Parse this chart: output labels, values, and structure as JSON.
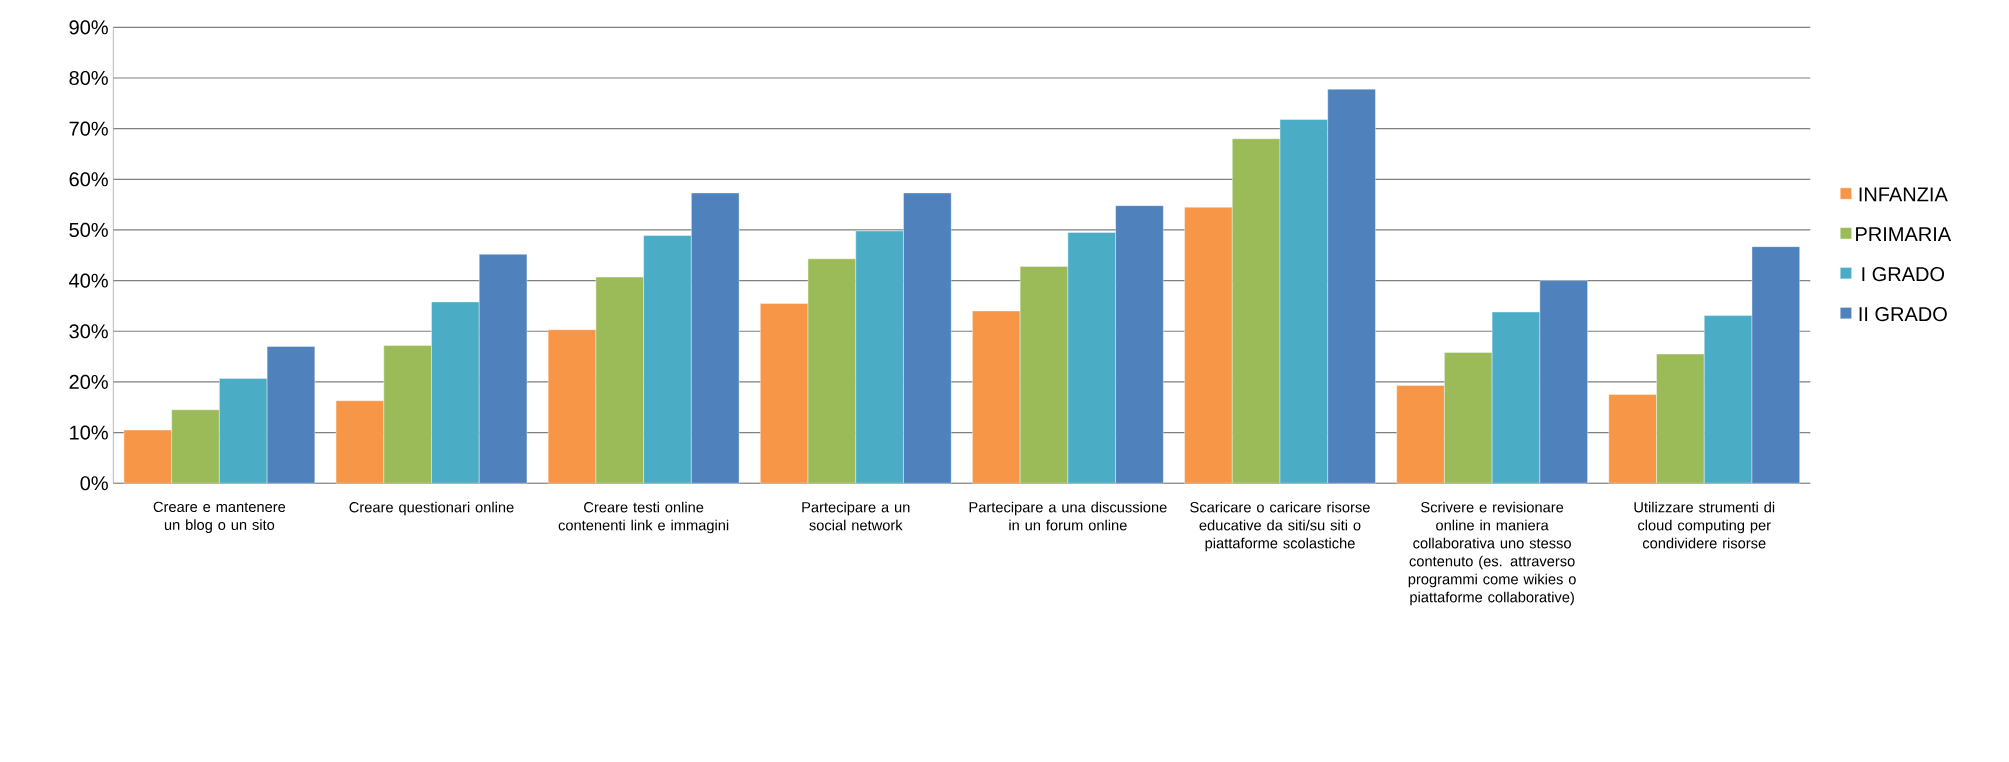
{
  "chart_data": {
    "type": "bar",
    "categories": [
      "Creare e mantenere un blog o un sito",
      "Creare questionari online",
      "Creare testi online contenenti link e immagini",
      "Partecipare a un social network",
      "Partecipare a una discussione in un forum online",
      "Scaricare o caricare risorse educative da siti/su siti o piattaforme scolastiche",
      "Scrivere e revisionare online in maniera collaborativa uno stesso contenuto (es. attraverso programmi come wikies o piattaforme collaborative)",
      "Utilizzare strumenti di cloud computing per condividere risorse"
    ],
    "series": [
      {
        "name": "INFANZIA",
        "color": "#f79646",
        "values": [
          10.5,
          16.3,
          30.3,
          35.5,
          34,
          54.5,
          19.3,
          17.5
        ]
      },
      {
        "name": "PRIMARIA",
        "color": "#9bbb59",
        "values": [
          14.5,
          27.2,
          40.7,
          44.3,
          42.8,
          68,
          25.8,
          25.5
        ]
      },
      {
        "name": "I GRADO",
        "color": "#4bacc6",
        "values": [
          20.7,
          35.8,
          48.9,
          49.8,
          49.5,
          71.8,
          33.8,
          33.1
        ]
      },
      {
        "name": "II GRADO",
        "color": "#4f81bd",
        "values": [
          27,
          45.2,
          57.3,
          57.3,
          54.8,
          77.8,
          40,
          46.7
        ]
      }
    ],
    "ylim": [
      0,
      90
    ],
    "yticks": [
      {
        "value": 0,
        "label": "0%"
      },
      {
        "value": 10,
        "label": "10%"
      },
      {
        "value": 20,
        "label": "20%"
      },
      {
        "value": 30,
        "label": "30%"
      },
      {
        "value": 40,
        "label": "40%"
      },
      {
        "value": 50,
        "label": "50%"
      },
      {
        "value": 60,
        "label": "60%"
      },
      {
        "value": 70,
        "label": "70%"
      },
      {
        "value": 80,
        "label": "80%"
      },
      {
        "value": 90,
        "label": "90%"
      }
    ],
    "grid": "y",
    "legend": "right"
  }
}
